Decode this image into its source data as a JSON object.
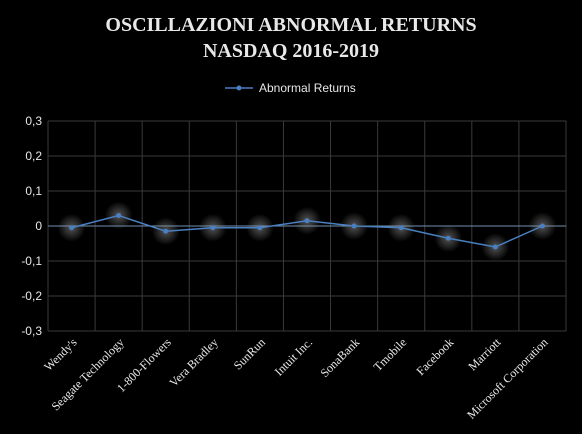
{
  "chart_data": {
    "type": "line",
    "title_lines": [
      "OSCILLAZIONI ABNORMAL RETURNS",
      "NASDAQ 2016-2019"
    ],
    "legend": {
      "label": "Abnormal Returns",
      "position": "top-center"
    },
    "categories": [
      "Wendy's",
      "Seagate Technology",
      "1-800-Flowers",
      "Vera Bradley",
      "SunRun",
      "Intuit Inc.",
      "SonaBank",
      "Tmobile",
      "Facebook",
      "Marriott",
      "Microsoft Corporation"
    ],
    "series": [
      {
        "name": "Abnormal Returns",
        "values": [
          -0.005,
          0.03,
          -0.015,
          -0.005,
          -0.005,
          0.015,
          0.0,
          -0.005,
          -0.035,
          -0.06,
          0.0
        ]
      }
    ],
    "ylim": [
      -0.3,
      0.3
    ],
    "yticks": [
      0.3,
      0.2,
      0.1,
      0,
      -0.1,
      -0.2,
      -0.3
    ],
    "ytick_labels": [
      "0,3",
      "0,2",
      "0,1",
      "0",
      "-0,1",
      "-0,2",
      "-0,3"
    ],
    "grid": true,
    "colors": {
      "background": "#000000",
      "plot_background": "#000000",
      "grid": "#3a3a3a",
      "line": "#4a7fc1",
      "marker": "#4a7fc1",
      "text": "#e8e8e8"
    }
  }
}
